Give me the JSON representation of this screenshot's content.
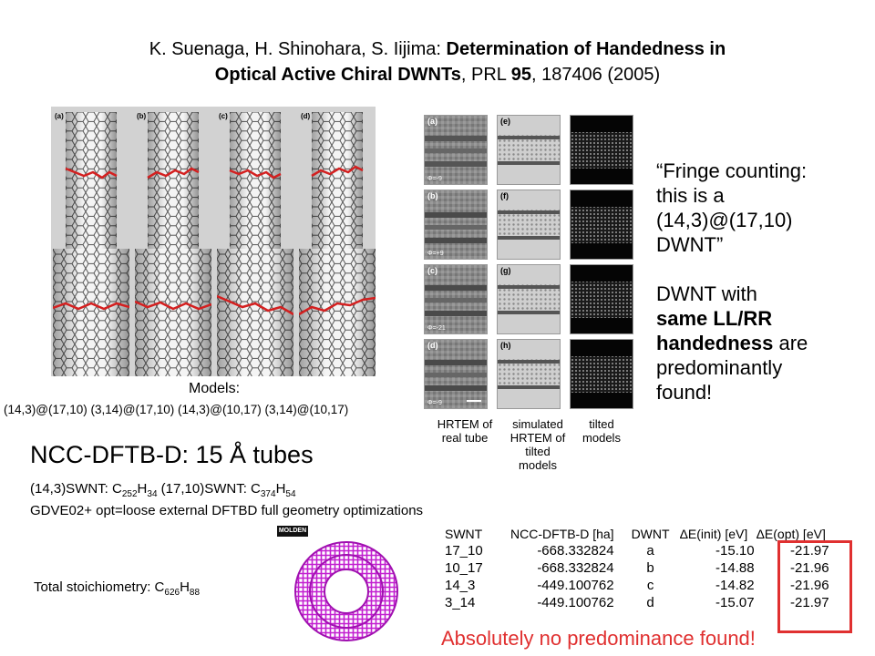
{
  "citation": {
    "authors": "K. Suenaga, H. Shinohara, S. Iijima: ",
    "title_line1": "Determination of Handedness in",
    "title_line2": "Optical Active Chiral DWNTs",
    "journal_prefix": ", PRL ",
    "volume": "95",
    "pages_year": ", 187406 (2005)"
  },
  "models": {
    "panel_labels": [
      "(a)",
      "(b)",
      "(c)",
      "(d)"
    ],
    "title": "Models:",
    "list": "(14,3)@(17,10) (3,14)@(17,10) (14,3)@(10,17) (3,14)@(10,17)"
  },
  "hrtem": {
    "left_labels": [
      "(a)",
      "(b)",
      "(c)",
      "(d)"
    ],
    "mid_labels": [
      "(e)",
      "(f)",
      "(g)",
      "(h)"
    ],
    "phi_labels": [
      "Φ=-9",
      "Φ=+9",
      "Φ=-21",
      "Φ=-9"
    ],
    "captions": {
      "col1_l1": "HRTEM of",
      "col1_l2": "real tube",
      "col2_l1": "simulated",
      "col2_l2": "HRTEM of",
      "col2_l3": "tilted",
      "col2_l4": "models",
      "col3_l1": "tilted",
      "col3_l2": "models"
    }
  },
  "quote": {
    "lines": [
      "“Fringe counting:",
      "this is a",
      "(14,3)@(17,10)",
      "DWNT”"
    ],
    "finding_l1": "DWNT with",
    "finding_bold1": "same LL/RR",
    "finding_bold2": "handedness",
    "finding_l3_rest": " are",
    "finding_l4": "predominantly",
    "finding_l5": "found!"
  },
  "ncc": {
    "title": "NCC-DFTB-D: 15 Å tubes",
    "formula": {
      "p1": "(14,3)SWNT: C",
      "s1": "252",
      "p2": "H",
      "s2": "34",
      "p3": " (17,10)SWNT: C",
      "s3": "374",
      "p4": "H",
      "s4": "54"
    },
    "method": "GDVE02+ opt=loose external DFTBD full geometry optimizations",
    "molden_label": "MOLDEN",
    "stoichiometry": {
      "prefix": "Total stoichiometry: C",
      "c_sub": "626",
      "h": "H",
      "h_sub": "88"
    }
  },
  "table": {
    "headers": [
      "SWNT",
      "NCC-DFTB-D [ha]",
      "DWNT",
      "ΔE(init) [eV]",
      "ΔE(opt) [eV]"
    ],
    "rows": [
      [
        "17_10",
        "-668.332824",
        "a",
        "-15.10",
        "-21.97"
      ],
      [
        "10_17",
        "-668.332824",
        "b",
        "-14.88",
        "-21.96"
      ],
      [
        "14_3",
        "-449.100762",
        "c",
        "-14.82",
        "-21.96"
      ],
      [
        "3_14",
        "-449.100762",
        "d",
        "-15.07",
        "-21.97"
      ]
    ]
  },
  "verdict": "Absolutely no predominance found!",
  "colors": {
    "accent_red": "#e03030",
    "molecule_magenta": "#c21fd0",
    "model_gray": "#d2d2d2"
  }
}
